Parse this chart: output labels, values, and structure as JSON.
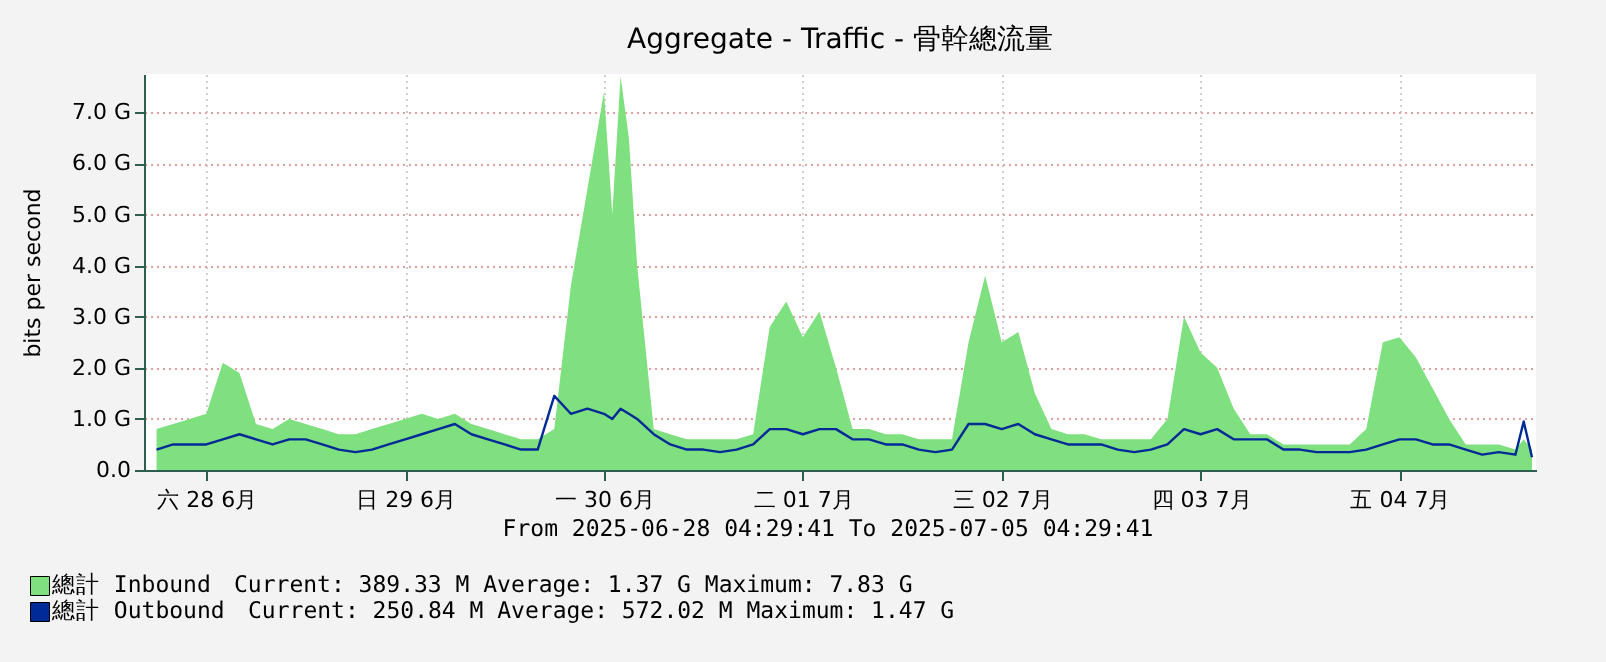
{
  "chart_data": {
    "type": "area",
    "title": "Aggregate - Traffic - 骨幹總流量",
    "ylabel": "bits per second",
    "x": [
      "2025-06-28T06:00",
      "2025-06-28T08:00",
      "2025-06-28T10:00",
      "2025-06-28T12:00",
      "2025-06-28T14:00",
      "2025-06-28T16:00",
      "2025-06-28T18:00",
      "2025-06-28T20:00",
      "2025-06-28T22:00",
      "2025-06-29T00:00",
      "2025-06-29T02:00",
      "2025-06-29T04:00",
      "2025-06-29T06:00",
      "2025-06-29T08:00",
      "2025-06-29T10:00",
      "2025-06-29T12:00",
      "2025-06-29T14:00",
      "2025-06-29T16:00",
      "2025-06-29T18:00",
      "2025-06-29T20:00",
      "2025-06-29T22:00",
      "2025-06-30T00:00",
      "2025-06-30T02:00",
      "2025-06-30T04:00",
      "2025-06-30T06:00",
      "2025-06-30T08:00",
      "2025-06-30T10:00",
      "2025-06-30T12:00",
      "2025-06-30T13:00",
      "2025-06-30T14:00",
      "2025-06-30T15:00",
      "2025-06-30T16:00",
      "2025-06-30T18:00",
      "2025-06-30T20:00",
      "2025-06-30T22:00",
      "2025-07-01T00:00",
      "2025-07-01T02:00",
      "2025-07-01T04:00",
      "2025-07-01T06:00",
      "2025-07-01T08:00",
      "2025-07-01T10:00",
      "2025-07-01T12:00",
      "2025-07-01T14:00",
      "2025-07-01T16:00",
      "2025-07-01T18:00",
      "2025-07-01T20:00",
      "2025-07-01T22:00",
      "2025-07-02T00:00",
      "2025-07-02T02:00",
      "2025-07-02T04:00",
      "2025-07-02T06:00",
      "2025-07-02T08:00",
      "2025-07-02T10:00",
      "2025-07-02T12:00",
      "2025-07-02T14:00",
      "2025-07-02T16:00",
      "2025-07-02T18:00",
      "2025-07-02T20:00",
      "2025-07-02T22:00",
      "2025-07-03T00:00",
      "2025-07-03T02:00",
      "2025-07-03T04:00",
      "2025-07-03T06:00",
      "2025-07-03T08:00",
      "2025-07-03T10:00",
      "2025-07-03T12:00",
      "2025-07-03T14:00",
      "2025-07-03T16:00",
      "2025-07-03T18:00",
      "2025-07-03T20:00",
      "2025-07-03T22:00",
      "2025-07-04T00:00",
      "2025-07-04T02:00",
      "2025-07-04T04:00",
      "2025-07-04T06:00",
      "2025-07-04T08:00",
      "2025-07-04T10:00",
      "2025-07-04T12:00",
      "2025-07-04T14:00",
      "2025-07-04T16:00",
      "2025-07-04T18:00",
      "2025-07-04T20:00",
      "2025-07-04T22:00",
      "2025-07-05T00:00",
      "2025-07-05T02:00",
      "2025-07-05T03:00",
      "2025-07-05T04:00"
    ],
    "series": [
      {
        "name": "總計 Inbound",
        "color": "#7ee07e",
        "values": [
          0.8,
          0.9,
          1.0,
          1.1,
          2.1,
          1.9,
          0.9,
          0.8,
          1.0,
          0.9,
          0.8,
          0.7,
          0.7,
          0.8,
          0.9,
          1.0,
          1.1,
          1.0,
          1.1,
          0.9,
          0.8,
          0.7,
          0.6,
          0.6,
          0.8,
          3.6,
          5.5,
          7.4,
          5.0,
          7.7,
          6.5,
          4.0,
          0.8,
          0.7,
          0.6,
          0.6,
          0.6,
          0.6,
          0.7,
          2.8,
          3.3,
          2.6,
          3.1,
          2.0,
          0.8,
          0.8,
          0.7,
          0.7,
          0.6,
          0.6,
          0.6,
          2.5,
          3.8,
          2.5,
          2.7,
          1.5,
          0.8,
          0.7,
          0.7,
          0.6,
          0.6,
          0.6,
          0.6,
          1.0,
          3.0,
          2.3,
          2.0,
          1.2,
          0.7,
          0.7,
          0.5,
          0.5,
          0.5,
          0.5,
          0.5,
          0.8,
          2.5,
          2.6,
          2.2,
          1.6,
          1.0,
          0.5,
          0.5,
          0.5,
          0.4,
          0.6,
          0.4
        ]
      },
      {
        "name": "總計 Outbound",
        "type": "line",
        "color": "#002a97",
        "values": [
          0.4,
          0.5,
          0.5,
          0.5,
          0.6,
          0.7,
          0.6,
          0.5,
          0.6,
          0.6,
          0.5,
          0.4,
          0.35,
          0.4,
          0.5,
          0.6,
          0.7,
          0.8,
          0.9,
          0.7,
          0.6,
          0.5,
          0.4,
          0.4,
          1.45,
          1.1,
          1.2,
          1.1,
          1.0,
          1.2,
          1.1,
          1.0,
          0.7,
          0.5,
          0.4,
          0.4,
          0.35,
          0.4,
          0.5,
          0.8,
          0.8,
          0.7,
          0.8,
          0.8,
          0.6,
          0.6,
          0.5,
          0.5,
          0.4,
          0.35,
          0.4,
          0.9,
          0.9,
          0.8,
          0.9,
          0.7,
          0.6,
          0.5,
          0.5,
          0.5,
          0.4,
          0.35,
          0.4,
          0.5,
          0.8,
          0.7,
          0.8,
          0.6,
          0.6,
          0.6,
          0.4,
          0.4,
          0.35,
          0.35,
          0.35,
          0.4,
          0.5,
          0.6,
          0.6,
          0.5,
          0.5,
          0.4,
          0.3,
          0.35,
          0.3,
          0.95,
          0.25
        ]
      }
    ],
    "xlim": [
      "2025-06-28T04:29",
      "2025-07-05T04:29"
    ],
    "xticks": [
      {
        "value": "2025-06-28T12:00",
        "label": "六 28  6月"
      },
      {
        "value": "2025-06-29T12:00",
        "label": "日 29  6月"
      },
      {
        "value": "2025-06-30T12:00",
        "label": "一 30  6月"
      },
      {
        "value": "2025-07-01T12:00",
        "label": "二 01  7月"
      },
      {
        "value": "2025-07-02T12:00",
        "label": "三 02  7月"
      },
      {
        "value": "2025-07-03T12:00",
        "label": "四 03  7月"
      },
      {
        "value": "2025-07-04T12:00",
        "label": "五 04  7月"
      }
    ],
    "ylim": [
      0,
      7.75
    ],
    "yticks": [
      {
        "value": 0,
        "label": "0.0"
      },
      {
        "value": 1,
        "label": "1.0 G"
      },
      {
        "value": 2,
        "label": "2.0 G"
      },
      {
        "value": 3,
        "label": "3.0 G"
      },
      {
        "value": 4,
        "label": "4.0 G"
      },
      {
        "value": 5,
        "label": "5.0 G"
      },
      {
        "value": 6,
        "label": "6.0 G"
      },
      {
        "value": 7,
        "label": "7.0 G"
      }
    ],
    "grid": true,
    "legend": "bottom left",
    "annotations": [
      "From 2025-06-28 04:29:41 To 2025-07-05 04:29:41",
      "Current:  389.33 M   Average:    1.37 G   Maximum:    7.83 G",
      "Current:  250.84 M   Average:  572.02 M   Maximum:    1.47 G"
    ]
  }
}
